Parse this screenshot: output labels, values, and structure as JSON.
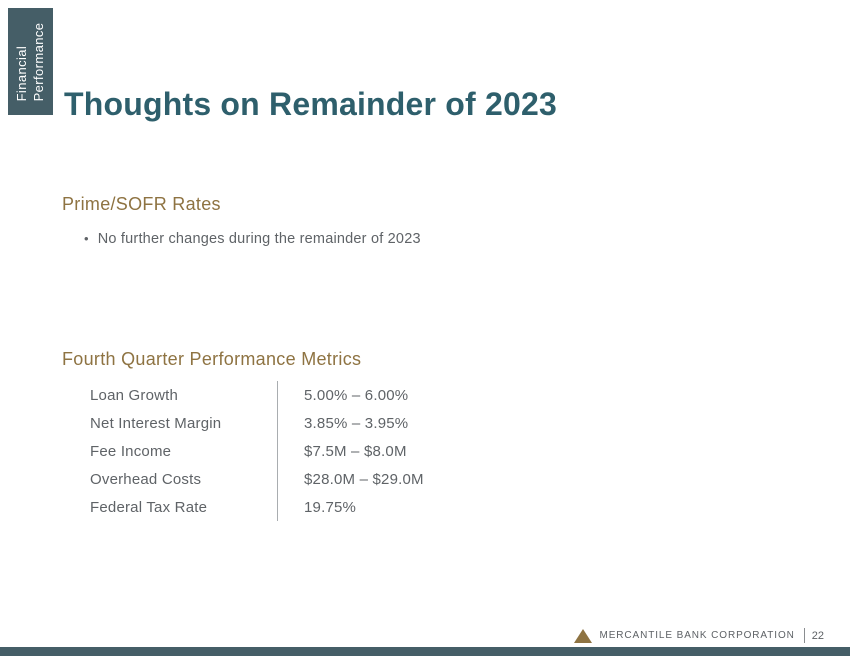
{
  "tab": {
    "line1": "Financial",
    "line2": "Performance"
  },
  "title": "Thoughts on Remainder of 2023",
  "rates_section": {
    "heading": "Prime/SOFR Rates",
    "bullet_marker": "•",
    "bullet": "No further changes during the remainder of 2023"
  },
  "metrics_section": {
    "heading": "Fourth Quarter Performance Metrics",
    "rows": [
      {
        "label": "Loan Growth",
        "value": "5.00% – 6.00%"
      },
      {
        "label": "Net Interest Margin",
        "value": "3.85% – 3.95%"
      },
      {
        "label": "Fee Income",
        "value": "$7.5M – $8.0M"
      },
      {
        "label": "Overhead Costs",
        "value": "$28.0M – $29.0M"
      },
      {
        "label": "Federal Tax Rate",
        "value": "19.75%"
      }
    ]
  },
  "footer": {
    "company_name": "MERCANTILE BANK CORPORATION",
    "page_number": "22"
  },
  "colors": {
    "teal_dark": "#455e67",
    "teal_title": "#2e5f6c",
    "gold": "#8e7342",
    "text_gray": "#5f6367",
    "divider_gray": "#a9adb0"
  }
}
